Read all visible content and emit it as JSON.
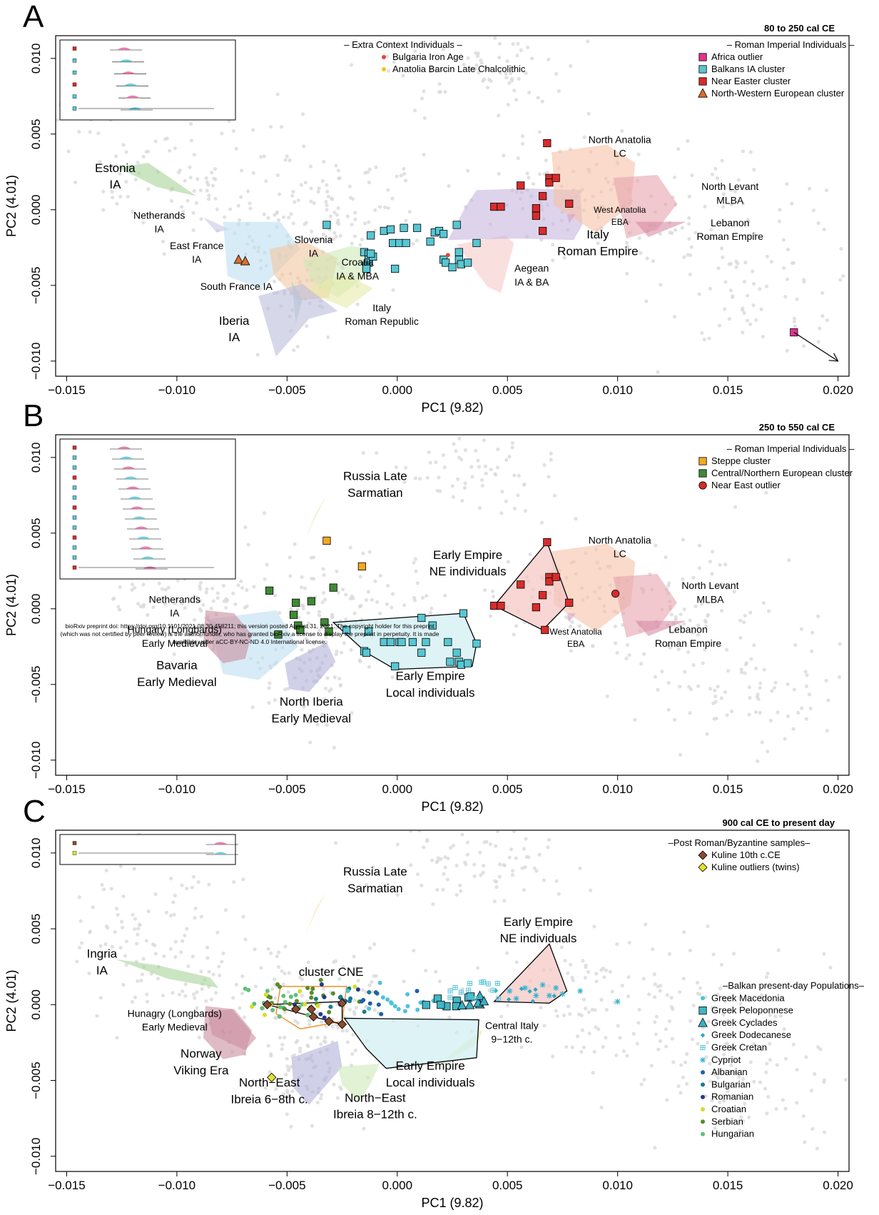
{
  "watermark": {
    "line1": "bioRxiv preprint doi: https://doi.org/10.1101/2021.08.30.458211; this version posted August 31, 2021. The copyright holder for this preprint",
    "line2": "(which was not certified by peer review) is the author/funder, who has granted bioRxiv a license to display the preprint in perpetuity. It is made",
    "line3": "available under aCC-BY-NC-ND 4.0 International license."
  },
  "colors": {
    "greek_macedonia": "#4fc3d9",
    "greek_peloponnese": "#41b6c4",
    "greek_cyclades": "#3ab0c6",
    "greek_dodecanese": "#2fa8c0",
    "greek_cretan": "#5cc6d8",
    "cypriot": "#35b5d1",
    "albanian": "#1f5fa8",
    "bulgarian": "#1b7c8c",
    "romanian": "#233a8a",
    "croatian": "#d8dc26",
    "serbian": "#5a8a2a",
    "hungarian": "#5fbf7a",
    "ne_cluster": "#d62c2c",
    "local_cluster": "#58c6d2",
    "cne_cluster": "#e8891a"
  },
  "chart_data": [
    {
      "panel": "A",
      "type": "scatter",
      "title": "80 to 250 cal CE",
      "xlabel": "PC1 (9.82)",
      "ylabel": "PC2 (4.01)",
      "xlim": [
        -0.0155,
        0.0205
      ],
      "ylim": [
        -0.011,
        0.0115
      ],
      "xticks": [
        "−0.015",
        "−0.010",
        "−0.005",
        "0.000",
        "0.005",
        "0.010",
        "0.015",
        "0.020"
      ],
      "yticks": [
        "−0.010",
        "−0.005",
        "0.000",
        "0.005",
        "0.010"
      ],
      "legends": [
        {
          "title": "– Extra Context Individuals –",
          "items": [
            {
              "label": "Bulgaria Iron Age",
              "shape": "dot",
              "color": "#e8433d"
            },
            {
              "label": "Anatolia Barcin Late Chalcolithic",
              "shape": "dot",
              "color": "#f0c419"
            }
          ]
        },
        {
          "title": "– Roman Imperial Individuals –",
          "items": [
            {
              "label": "Africa outlier",
              "shape": "square",
              "color": "#e0338f"
            },
            {
              "label": "Balkans IA cluster",
              "shape": "square",
              "color": "#58c6d2"
            },
            {
              "label": "Near Easter cluster",
              "shape": "square",
              "color": "#d62c2c"
            },
            {
              "label": "North-Western European cluster",
              "shape": "triangle",
              "color": "#d96f2e"
            }
          ]
        }
      ],
      "labels": [
        {
          "text": "Estonia",
          "x": -0.0128,
          "y": 0.0025,
          "size": 17
        },
        {
          "text": "IA",
          "x": -0.0128,
          "y": 0.0014,
          "size": 17
        },
        {
          "text": "Netherands",
          "x": -0.0108,
          "y": -0.0006,
          "size": 14
        },
        {
          "text": "IA",
          "x": -0.0108,
          "y": -0.0015,
          "size": 14
        },
        {
          "text": "East France",
          "x": -0.0091,
          "y": -0.0026,
          "size": 14
        },
        {
          "text": "IA",
          "x": -0.0091,
          "y": -0.0035,
          "size": 14
        },
        {
          "text": "South France IA",
          "x": -0.0073,
          "y": -0.0053,
          "size": 14
        },
        {
          "text": "Slovenia",
          "x": -0.0038,
          "y": -0.0022,
          "size": 14
        },
        {
          "text": "IA",
          "x": -0.0038,
          "y": -0.0031,
          "size": 14
        },
        {
          "text": "Croatia",
          "x": -0.0018,
          "y": -0.0037,
          "size": 14
        },
        {
          "text": "IA & MBA",
          "x": -0.0018,
          "y": -0.0046,
          "size": 14
        },
        {
          "text": "Italy",
          "x": -0.0007,
          "y": -0.0067,
          "size": 14
        },
        {
          "text": "Roman Republic",
          "x": -0.0007,
          "y": -0.0076,
          "size": 14
        },
        {
          "text": "Iberia",
          "x": -0.0074,
          "y": -0.0076,
          "size": 17
        },
        {
          "text": "IA",
          "x": -0.0074,
          "y": -0.0087,
          "size": 17
        },
        {
          "text": "Aegean",
          "x": 0.0061,
          "y": -0.0041,
          "size": 14
        },
        {
          "text": "IA & BA",
          "x": 0.0061,
          "y": -0.005,
          "size": 14
        },
        {
          "text": "Italy",
          "x": 0.0091,
          "y": -0.0019,
          "size": 17
        },
        {
          "text": "Roman Empire",
          "x": 0.0091,
          "y": -0.003,
          "size": 17
        },
        {
          "text": "North Anatolia",
          "x": 0.0101,
          "y": 0.0044,
          "size": 14
        },
        {
          "text": "LC",
          "x": 0.0101,
          "y": 0.0035,
          "size": 14
        },
        {
          "text": "West Anatolia",
          "x": 0.0101,
          "y": -0.0002,
          "size": 12
        },
        {
          "text": "EBA",
          "x": 0.0101,
          "y": -0.001,
          "size": 12
        },
        {
          "text": "North Levant",
          "x": 0.0151,
          "y": 0.0013,
          "size": 14
        },
        {
          "text": "MLBA",
          "x": 0.0151,
          "y": 0.0004,
          "size": 14
        },
        {
          "text": "Lebanon",
          "x": 0.0151,
          "y": -0.0011,
          "size": 14
        },
        {
          "text": "Roman Empire",
          "x": 0.0151,
          "y": -0.002,
          "size": 14
        }
      ]
    },
    {
      "panel": "B",
      "type": "scatter",
      "title": "250 to 550 cal CE",
      "xlabel": "PC1 (9.82)",
      "ylabel": "PC2 (4.01)",
      "xlim": [
        -0.0155,
        0.0205
      ],
      "ylim": [
        -0.011,
        0.0115
      ],
      "xticks": [
        "−0.015",
        "−0.010",
        "−0.005",
        "0.000",
        "0.005",
        "0.010",
        "0.015",
        "0.020"
      ],
      "yticks": [
        "−0.010",
        "−0.005",
        "0.000",
        "0.005",
        "0.010"
      ],
      "legends": [
        {
          "title": "– Roman Imperial Individuals –",
          "items": [
            {
              "label": "Steppe cluster",
              "shape": "square",
              "color": "#f2a922"
            },
            {
              "label": "Central/Northern European cluster",
              "shape": "square",
              "color": "#3f8a34"
            },
            {
              "label": "Near East outlier",
              "shape": "circle",
              "color": "#d62c2c"
            }
          ]
        }
      ],
      "labels": [
        {
          "text": "Russia Late",
          "x": -0.001,
          "y": 0.0085,
          "size": 17
        },
        {
          "text": "Sarmatian",
          "x": -0.001,
          "y": 0.0074,
          "size": 17
        },
        {
          "text": "Early Empire",
          "x": 0.0032,
          "y": 0.0033,
          "size": 17,
          "color": "#d62c2c"
        },
        {
          "text": "NE individuals",
          "x": 0.0032,
          "y": 0.0022,
          "size": 17,
          "color": "#d62c2c"
        },
        {
          "text": "North Anatolia",
          "x": 0.0101,
          "y": 0.0043,
          "size": 14
        },
        {
          "text": "LC",
          "x": 0.0101,
          "y": 0.0034,
          "size": 14
        },
        {
          "text": "North Levant",
          "x": 0.0142,
          "y": 0.0013,
          "size": 14
        },
        {
          "text": "MLBA",
          "x": 0.0142,
          "y": 0.0004,
          "size": 14
        },
        {
          "text": "West Anatolia",
          "x": 0.0081,
          "y": -0.0017,
          "size": 12
        },
        {
          "text": "EBA",
          "x": 0.0081,
          "y": -0.0025,
          "size": 12
        },
        {
          "text": "Lebanon",
          "x": 0.0132,
          "y": -0.0016,
          "size": 14
        },
        {
          "text": "Roman Empire",
          "x": 0.0132,
          "y": -0.0025,
          "size": 14
        },
        {
          "text": "Netherands",
          "x": -0.0101,
          "y": 0.0004,
          "size": 14
        },
        {
          "text": "IA",
          "x": -0.0101,
          "y": -0.0005,
          "size": 14
        },
        {
          "text": "Hungary (Longbards)",
          "x": -0.0101,
          "y": -0.0016,
          "size": 14
        },
        {
          "text": "Early Medieval",
          "x": -0.0101,
          "y": -0.0025,
          "size": 14
        },
        {
          "text": "Bavaria",
          "x": -0.01,
          "y": -0.004,
          "size": 17
        },
        {
          "text": "Early Medieval",
          "x": -0.01,
          "y": -0.0051,
          "size": 17
        },
        {
          "text": "North Iberia",
          "x": -0.0039,
          "y": -0.0064,
          "size": 17
        },
        {
          "text": "Early Medieval",
          "x": -0.0039,
          "y": -0.0075,
          "size": 17
        },
        {
          "text": "Early Empire",
          "x": 0.0015,
          "y": -0.0047,
          "size": 17,
          "color": "#58c6d2"
        },
        {
          "text": "Local individuals",
          "x": 0.0015,
          "y": -0.0058,
          "size": 17,
          "color": "#58c6d2"
        }
      ]
    },
    {
      "panel": "C",
      "type": "scatter",
      "title": "900 cal CE to present day",
      "xlabel": "PC1 (9.82)",
      "ylabel": "PC2 (4.01)",
      "xlim": [
        -0.0155,
        0.0205
      ],
      "ylim": [
        -0.011,
        0.0115
      ],
      "xticks": [
        "−0.015",
        "−0.010",
        "−0.005",
        "0.000",
        "0.005",
        "0.010",
        "0.015",
        "0.020"
      ],
      "yticks": [
        "−0.010",
        "−0.005",
        "0.000",
        "0.005",
        "0.010"
      ],
      "legends": [
        {
          "title": "–Post Roman/Byzantine samples–",
          "items": [
            {
              "label": "Kuline 10th c.CE",
              "shape": "diamond",
              "color": "#8b4a2b"
            },
            {
              "label": "Kuline outliers (twins)",
              "shape": "diamond",
              "color": "#e6e22e"
            }
          ]
        },
        {
          "title": "–Balkan present-day Populations–",
          "items": [
            {
              "label": "Greek Macedonia",
              "shape": "dot",
              "color": "#4fc3d9"
            },
            {
              "label": "Greek Peloponnese",
              "shape": "square",
              "color": "#41b6c4"
            },
            {
              "label": "Greek Cyclades",
              "shape": "triangle",
              "color": "#3ab0c6"
            },
            {
              "label": "Greek Dodecanese",
              "shape": "diamond",
              "color": "#2fa8c0"
            },
            {
              "label": "Greek Cretan",
              "shape": "boxplus",
              "color": "#5cc6d8"
            },
            {
              "label": "Cypriot",
              "shape": "asterisk",
              "color": "#35b5d1"
            },
            {
              "label": "Albanian",
              "shape": "dot",
              "color": "#1f5fa8"
            },
            {
              "label": "Bulgarian",
              "shape": "dot",
              "color": "#1b7c8c"
            },
            {
              "label": "Romanian",
              "shape": "dot",
              "color": "#233a8a"
            },
            {
              "label": "Croatian",
              "shape": "dot",
              "color": "#d8dc26"
            },
            {
              "label": "Serbian",
              "shape": "dot",
              "color": "#5a8a2a"
            },
            {
              "label": "Hungarian",
              "shape": "dot",
              "color": "#5fbf7a"
            }
          ]
        }
      ],
      "labels": [
        {
          "text": "Russia Late",
          "x": -0.001,
          "y": 0.0085,
          "size": 17
        },
        {
          "text": "Sarmatian",
          "x": -0.001,
          "y": 0.0074,
          "size": 17
        },
        {
          "text": "Early Empire",
          "x": 0.0064,
          "y": 0.0052,
          "size": 17,
          "color": "#d62c2c"
        },
        {
          "text": "NE individuals",
          "x": 0.0064,
          "y": 0.0041,
          "size": 17,
          "color": "#d62c2c"
        },
        {
          "text": "cluster CNE",
          "x": -0.003,
          "y": 0.0019,
          "size": 17,
          "color": "#e8891a"
        },
        {
          "text": "Ingria",
          "x": -0.0134,
          "y": 0.0031,
          "size": 17
        },
        {
          "text": "IA",
          "x": -0.0134,
          "y": 0.002,
          "size": 17
        },
        {
          "text": "Hunagry (Longbards)",
          "x": -0.0101,
          "y": -0.0008,
          "size": 14
        },
        {
          "text": "Early Medieval",
          "x": -0.0101,
          "y": -0.0017,
          "size": 14
        },
        {
          "text": "Norway",
          "x": -0.0089,
          "y": -0.0035,
          "size": 17
        },
        {
          "text": "Viking Era",
          "x": -0.0089,
          "y": -0.0046,
          "size": 17
        },
        {
          "text": "North−East",
          "x": -0.0058,
          "y": -0.0054,
          "size": 17
        },
        {
          "text": "Ibreia 6−8th c.",
          "x": -0.0058,
          "y": -0.0065,
          "size": 17
        },
        {
          "text": "North−East",
          "x": -0.001,
          "y": -0.0064,
          "size": 17
        },
        {
          "text": "Ibreia 8−12th c.",
          "x": -0.001,
          "y": -0.0075,
          "size": 17
        },
        {
          "text": "Early Empire",
          "x": 0.0015,
          "y": -0.0043,
          "size": 17,
          "color": "#58c6d2"
        },
        {
          "text": "Local individuals",
          "x": 0.0015,
          "y": -0.0054,
          "size": 17,
          "color": "#58c6d2"
        },
        {
          "text": "Central Italy",
          "x": 0.0052,
          "y": -0.0016,
          "size": 14
        },
        {
          "text": "9−12th c.",
          "x": 0.0052,
          "y": -0.0025,
          "size": 14
        }
      ]
    }
  ]
}
